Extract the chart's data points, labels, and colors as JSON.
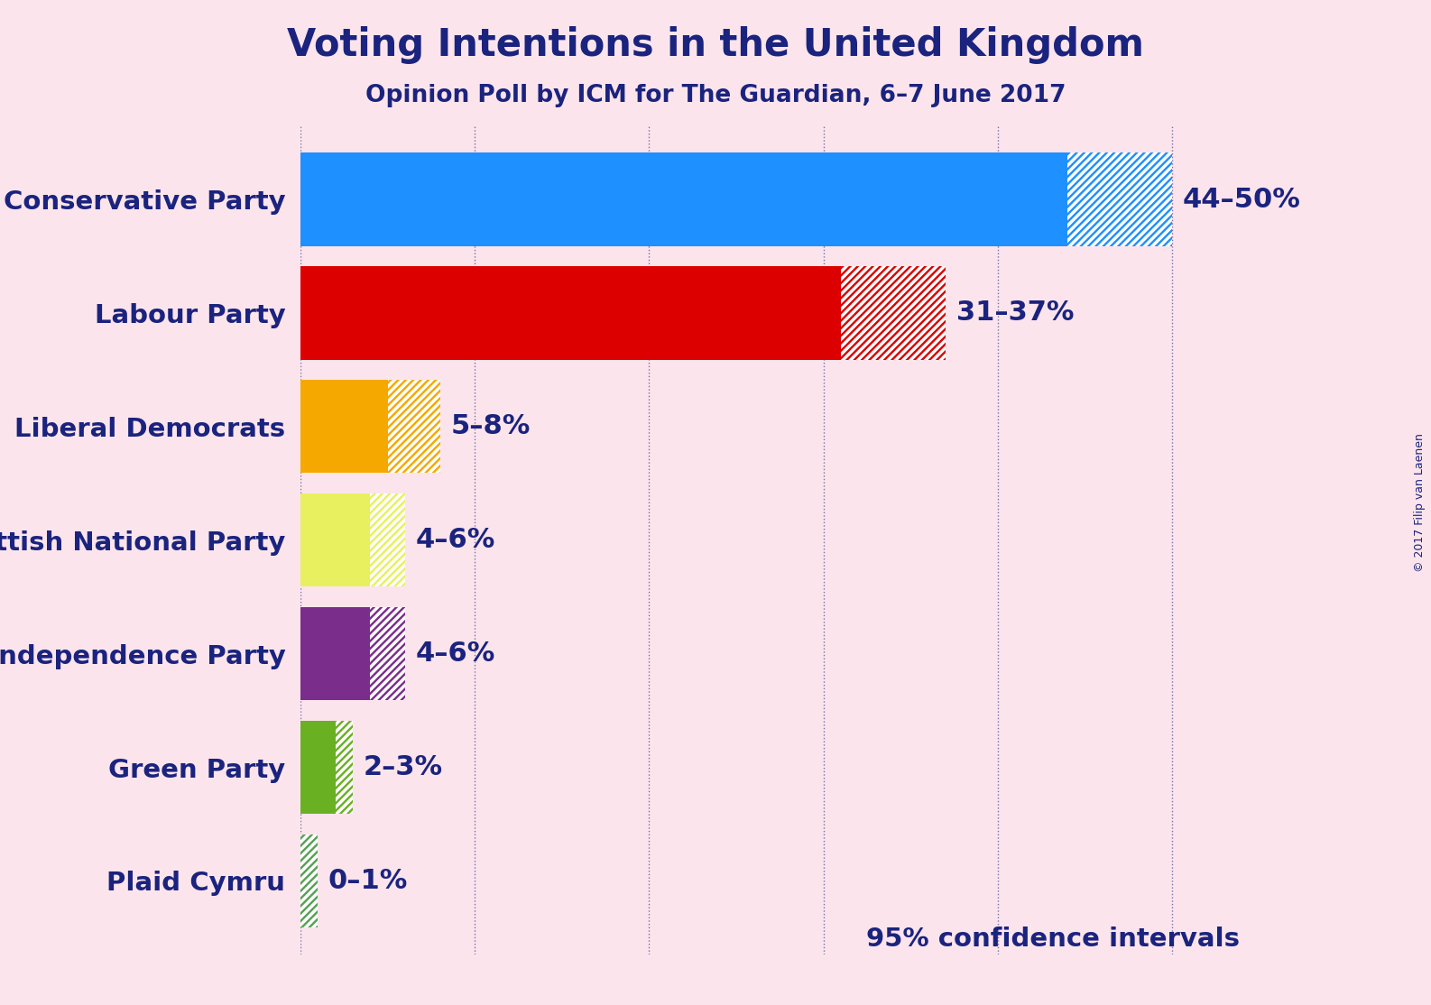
{
  "title": "Voting Intentions in the United Kingdom",
  "subtitle": "Opinion Poll by ICM for The Guardian, 6–7 June 2017",
  "copyright": "© 2017 Filip van Laenen",
  "confidence_label": "95% confidence intervals",
  "background_color": "#fce4ec",
  "text_color": "#1a237e",
  "parties": [
    "Conservative Party",
    "Labour Party",
    "Liberal Democrats",
    "Scottish National Party",
    "UK Independence Party",
    "Green Party",
    "Plaid Cymru"
  ],
  "low_values": [
    44,
    31,
    5,
    4,
    4,
    2,
    0
  ],
  "high_values": [
    50,
    37,
    8,
    6,
    6,
    3,
    1
  ],
  "colors": [
    "#1e90ff",
    "#dd0000",
    "#f5a800",
    "#e8f060",
    "#7b2d8b",
    "#6ab023",
    "#56a154"
  ],
  "labels": [
    "44–50%",
    "31–37%",
    "5–8%",
    "4–6%",
    "4–6%",
    "2–3%",
    "0–1%"
  ],
  "grid_values": [
    0,
    10,
    20,
    30,
    40,
    50
  ],
  "xlim": [
    0,
    55
  ],
  "bar_height": 0.82,
  "title_fontsize": 30,
  "subtitle_fontsize": 19,
  "label_fontsize": 21,
  "annot_fontsize": 22,
  "copyright_fontsize": 9,
  "confidence_fontsize": 21
}
